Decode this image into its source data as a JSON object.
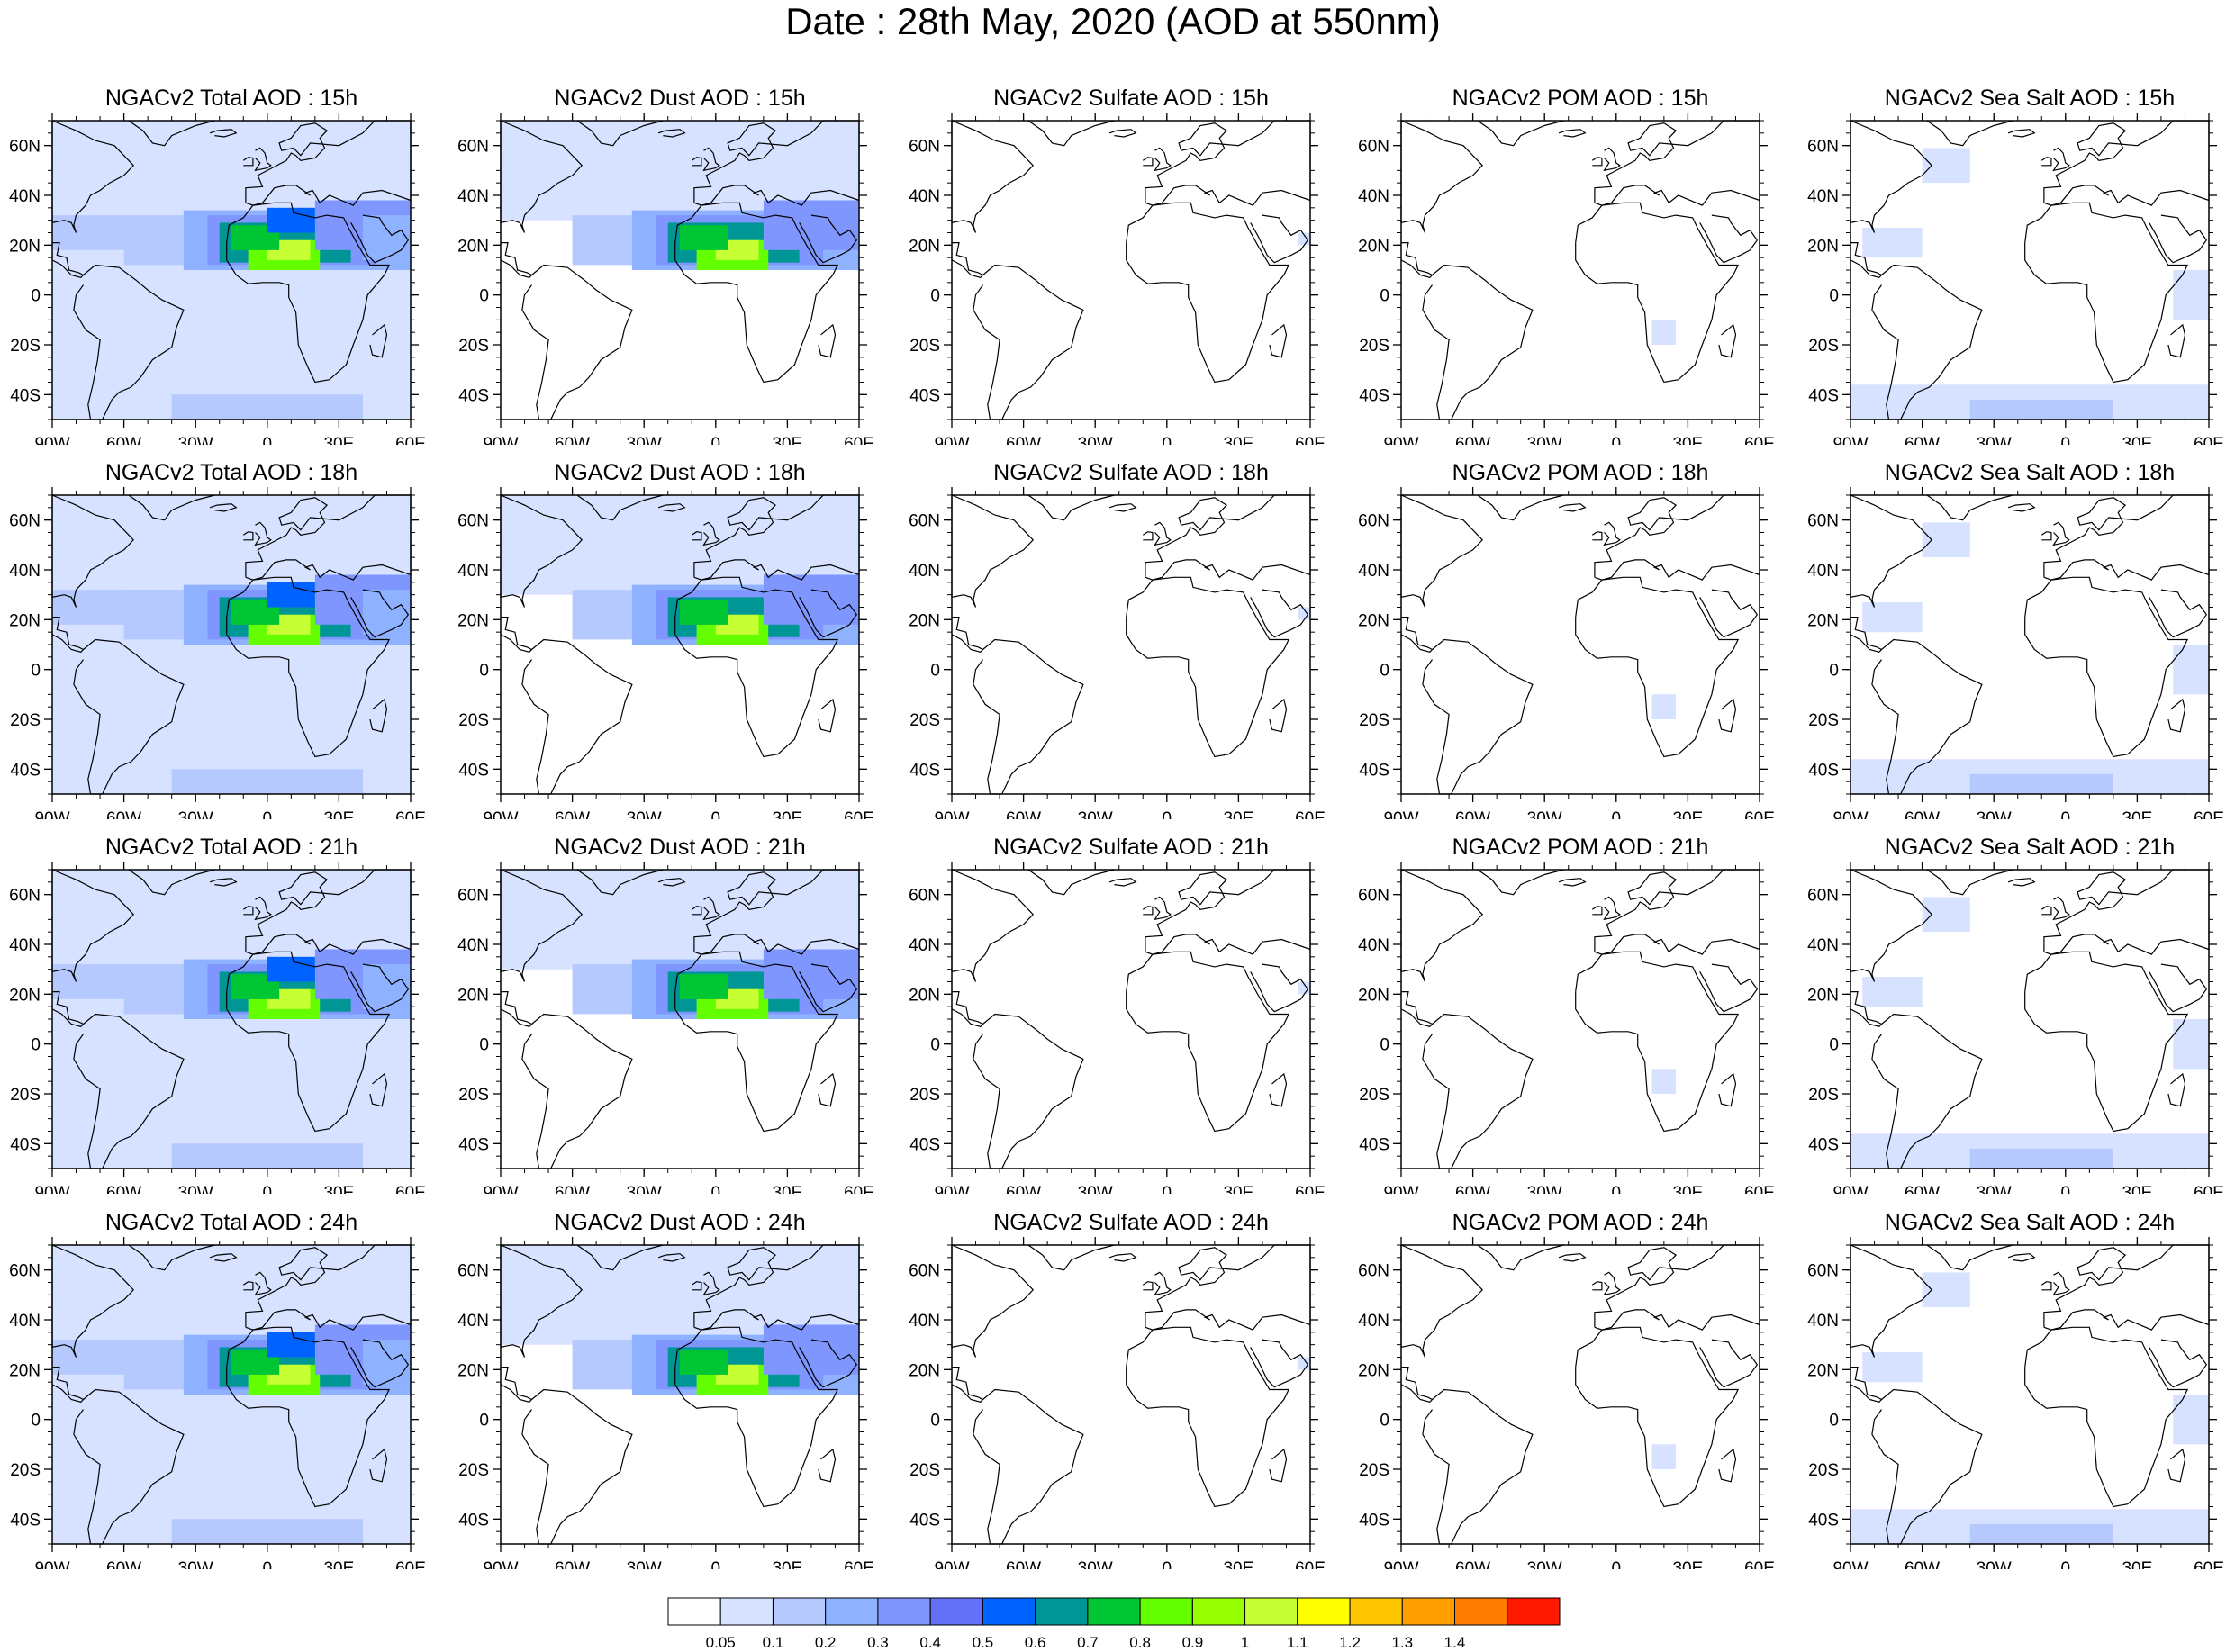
{
  "title": "Date : 28th May, 2020 (AOD at 550nm)",
  "panel_titles": [
    [
      "NGACv2 Total AOD : 15h",
      "NGACv2 Dust AOD : 15h",
      "NGACv2 Sulfate AOD : 15h",
      "NGACv2 POM AOD : 15h",
      "NGACv2 Sea Salt AOD : 15h"
    ],
    [
      "NGACv2 Total AOD : 18h",
      "NGACv2 Dust AOD : 18h",
      "NGACv2 Sulfate AOD : 18h",
      "NGACv2 POM AOD : 18h",
      "NGACv2 Sea Salt AOD : 18h"
    ],
    [
      "NGACv2 Total AOD : 21h",
      "NGACv2 Dust AOD : 21h",
      "NGACv2 Sulfate AOD : 21h",
      "NGACv2 POM AOD : 21h",
      "NGACv2 Sea Salt AOD : 21h"
    ],
    [
      "NGACv2 Total AOD : 24h",
      "NGACv2 Dust AOD : 24h",
      "NGACv2 Sulfate AOD : 24h",
      "NGACv2 POM AOD : 24h",
      "NGACv2 Sea Salt  AOD : 24h"
    ]
  ],
  "lat_labels": [
    "60N",
    "40N",
    "20N",
    "0",
    "20S",
    "40S"
  ],
  "lat_values": [
    60,
    40,
    20,
    0,
    -20,
    -40
  ],
  "lon_labels": [
    "90W",
    "60W",
    "30W",
    "0",
    "30E",
    "60E"
  ],
  "lon_values": [
    -90,
    -60,
    -30,
    0,
    30,
    60
  ],
  "map_extent": {
    "lon_min": -90,
    "lon_max": 60,
    "lat_min": -50,
    "lat_max": 70
  },
  "colorbar": {
    "levels": [
      "0.05",
      "0.1",
      "0.2",
      "0.3",
      "0.4",
      "0.5",
      "0.6",
      "0.7",
      "0.8",
      "0.9",
      "1",
      "1.1",
      "1.2",
      "1.3",
      "1.4"
    ],
    "colors": [
      "#ffffff",
      "#d6e2ff",
      "#b5c9ff",
      "#8eb2ff",
      "#7f96ff",
      "#6370f8",
      "#0063ff",
      "#009696",
      "#00c633",
      "#63ff00",
      "#96ff00",
      "#c6ff33",
      "#ffff00",
      "#ffc600",
      "#ffa000",
      "#ff7c00",
      "#ff1900"
    ]
  }
}
